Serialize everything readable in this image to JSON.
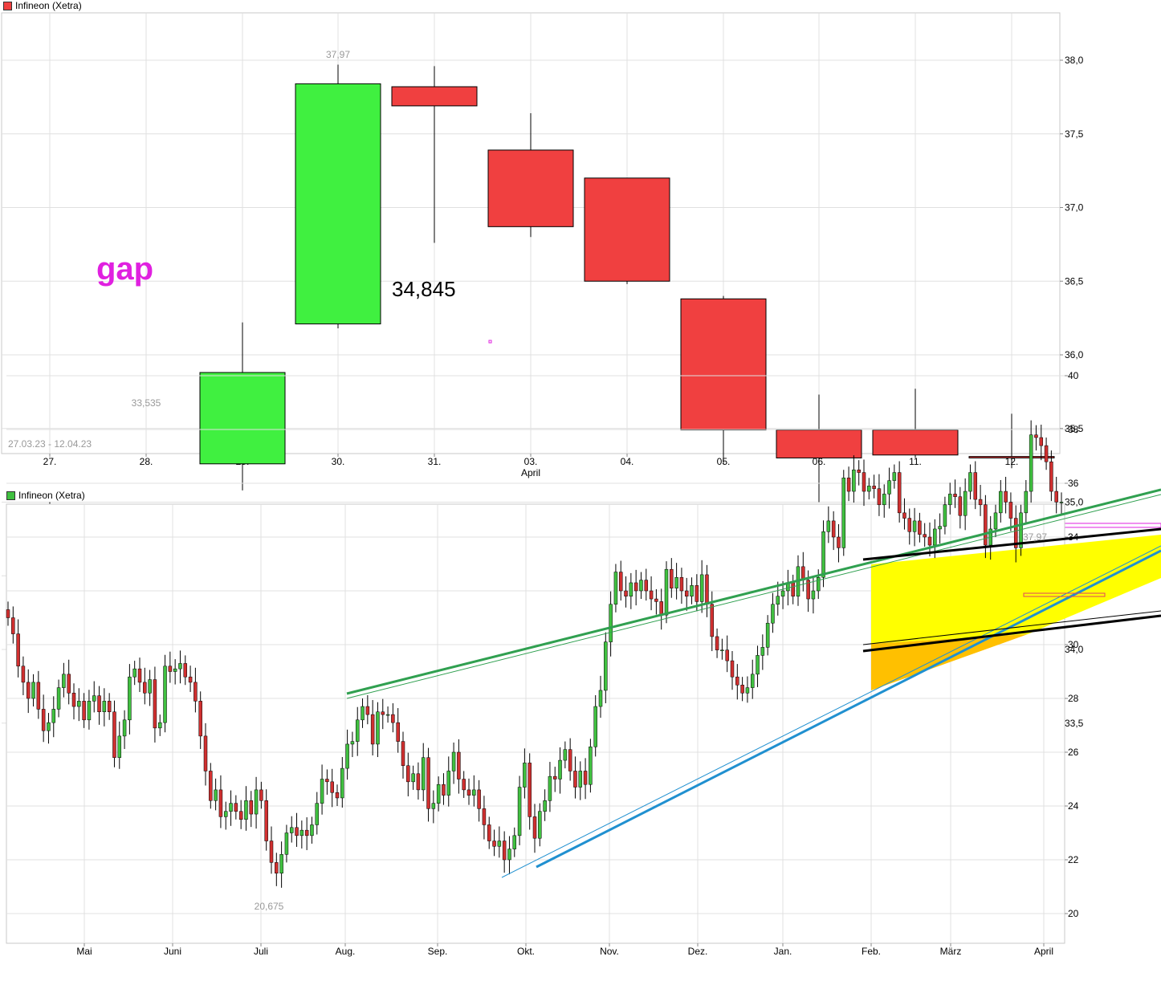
{
  "top_chart": {
    "legend": "Infineon (Xetra)",
    "date_range": "27.03.23 - 12.04.23",
    "annotation_gap": "gap",
    "annotation_level": "34,845",
    "high_label": "37,97",
    "low_label": "33,535",
    "month_label": "April",
    "colors": {
      "up": "#40f040",
      "down": "#f04040",
      "gap_line": "#e020e0"
    }
  },
  "bottom_chart": {
    "legend": "Infineon (Xetra)",
    "high_label": "37,97",
    "low_label": "20,675",
    "colors": {
      "up": "#40c040",
      "down": "#d03030",
      "channel_fill": "#ffff00",
      "triangle_fill": "#ffc000",
      "green_trend": "#30a050",
      "blue_trend": "#2090d0"
    }
  },
  "chart_data": [
    {
      "type": "candlestick",
      "title": "Infineon (Xetra)",
      "x_tick_labels": [
        "27.",
        "28.",
        "29.",
        "30.",
        "31.",
        "03.",
        "04.",
        "05.",
        "06.",
        "11.",
        "12."
      ],
      "y_tick_labels": [
        "33,5",
        "34,0",
        "34,5",
        "35,0",
        "35,5",
        "36,0",
        "36,5",
        "37,0",
        "37,5",
        "38,0",
        "38,5"
      ],
      "ylim": [
        33.0,
        38.7
      ],
      "gap_level": 34.845,
      "candles": [
        {
          "date": "27.",
          "open": 34.45,
          "high": 35.0,
          "low": 34.23,
          "close": 34.65
        },
        {
          "date": "28.",
          "open": 34.65,
          "high": 34.84,
          "low": 33.535,
          "close": 33.56
        },
        {
          "date": "29.",
          "open": 35.26,
          "high": 36.22,
          "low": 35.08,
          "close": 35.88
        },
        {
          "date": "30.",
          "open": 36.21,
          "high": 37.97,
          "low": 36.18,
          "close": 37.84
        },
        {
          "date": "31.",
          "open": 37.82,
          "high": 37.96,
          "low": 36.76,
          "close": 37.69
        },
        {
          "date": "03.",
          "open": 37.39,
          "high": 37.64,
          "low": 36.8,
          "close": 36.87
        },
        {
          "date": "04.",
          "open": 37.2,
          "high": 37.2,
          "low": 36.48,
          "close": 36.5
        },
        {
          "date": "05.",
          "open": 36.38,
          "high": 36.4,
          "low": 35.26,
          "close": 35.49
        },
        {
          "date": "06.",
          "open": 35.49,
          "high": 35.73,
          "low": 35.0,
          "close": 35.3
        },
        {
          "date": "11.",
          "open": 35.49,
          "high": 35.77,
          "low": 35.3,
          "close": 35.32
        },
        {
          "date": "12.",
          "open": 35.31,
          "high": 35.6,
          "low": 35.23,
          "close": 35.3
        }
      ]
    },
    {
      "type": "candlestick",
      "title": "Infineon (Xetra)",
      "x_tick_labels": [
        "Mai",
        "Juni",
        "Juli",
        "Aug.",
        "Sep.",
        "Okt.",
        "Nov.",
        "Dez.",
        "Jan.",
        "Feb.",
        "März",
        "April"
      ],
      "y_tick_labels": [
        "20",
        "22",
        "24",
        "26",
        "28",
        "30",
        "32",
        "34",
        "36",
        "38",
        "40"
      ],
      "ylim": [
        19.0,
        40.6
      ],
      "grid": true,
      "closes": [
        31.0,
        30.4,
        29.2,
        28.6,
        28.0,
        28.6,
        27.6,
        26.8,
        27.1,
        27.6,
        28.4,
        28.9,
        28.2,
        27.7,
        27.9,
        27.2,
        27.9,
        28.1,
        27.5,
        27.9,
        27.5,
        25.8,
        26.6,
        27.2,
        28.8,
        29.1,
        28.6,
        28.2,
        28.7,
        26.9,
        27.1,
        29.2,
        29.0,
        29.1,
        29.3,
        28.8,
        28.6,
        27.9,
        26.6,
        25.3,
        24.2,
        24.6,
        23.6,
        23.8,
        24.1,
        23.8,
        23.5,
        24.2,
        23.7,
        24.6,
        24.2,
        22.7,
        21.9,
        21.5,
        22.2,
        23.0,
        23.2,
        22.9,
        23.1,
        22.9,
        23.3,
        24.1,
        25.0,
        24.9,
        24.5,
        24.3,
        25.4,
        26.3,
        26.4,
        27.2,
        27.7,
        27.4,
        26.3,
        27.5,
        27.4,
        27.4,
        27.1,
        26.4,
        25.5,
        24.9,
        25.2,
        24.6,
        25.8,
        23.9,
        24.1,
        24.8,
        24.4,
        25.3,
        26.0,
        25.0,
        24.6,
        24.4,
        24.6,
        23.9,
        23.3,
        22.7,
        22.5,
        22.7,
        22.0,
        22.4,
        22.9,
        24.7,
        25.6,
        23.6,
        22.8,
        23.8,
        24.2,
        25.1,
        25.0,
        25.7,
        26.1,
        25.3,
        24.7,
        25.3,
        24.8,
        26.2,
        27.7,
        28.3,
        30.1,
        31.5,
        32.7,
        32.0,
        31.8,
        32.3,
        32.0,
        32.4,
        32.0,
        31.7,
        31.6,
        31.1,
        32.8,
        32.1,
        32.5,
        32.0,
        31.8,
        32.2,
        31.6,
        32.6,
        31.5,
        30.3,
        29.8,
        29.8,
        29.4,
        28.8,
        28.5,
        28.2,
        28.4,
        28.9,
        29.6,
        29.9,
        30.8,
        31.5,
        31.8,
        32.0,
        32.3,
        31.8,
        32.9,
        32.4,
        31.7,
        32.0,
        32.5,
        34.2,
        34.6,
        34.0,
        33.6,
        36.2,
        35.7,
        36.5,
        36.4,
        35.7,
        35.9,
        35.8,
        35.2,
        35.6,
        36.1,
        36.4,
        34.9,
        34.7,
        34.2,
        34.6,
        34.1,
        34.0,
        33.7,
        34.3,
        34.4,
        35.2,
        35.6,
        35.5,
        34.8,
        35.7,
        36.4,
        35.4,
        35.2,
        33.7,
        34.3,
        34.9,
        35.7,
        35.3,
        34.7,
        33.6,
        34.9,
        35.7,
        37.8,
        37.7,
        37.4,
        36.8,
        35.7,
        35.3,
        35.3
      ],
      "annotations": {
        "max": 37.97,
        "min": 20.675
      }
    }
  ]
}
